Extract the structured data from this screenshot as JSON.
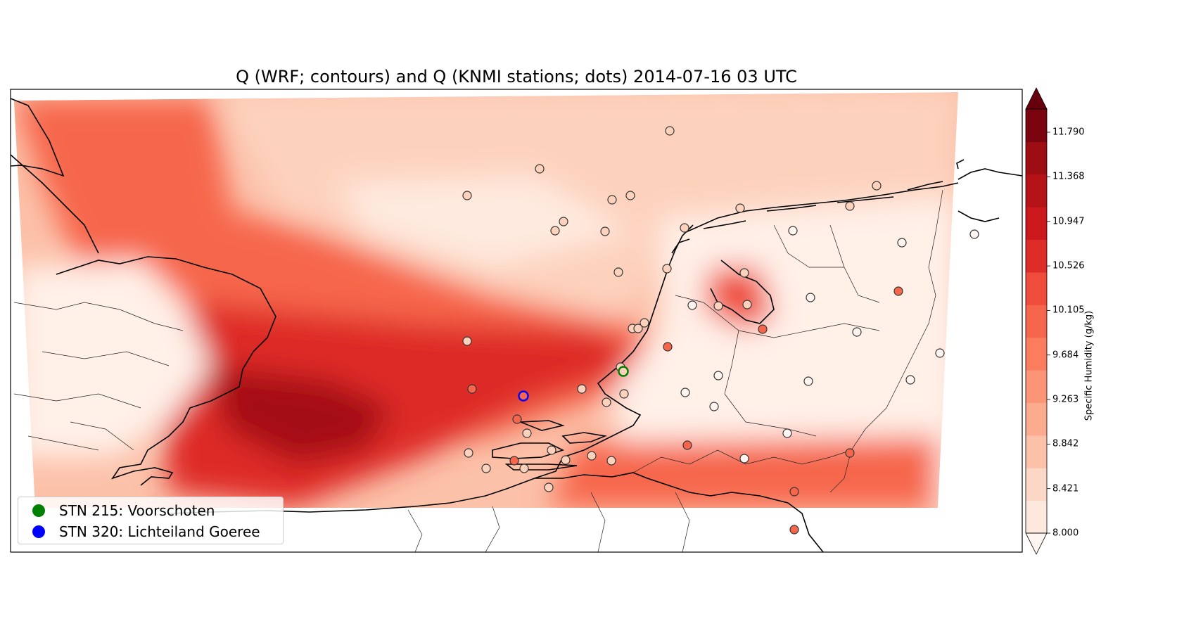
{
  "title": "Q (WRF; contours) and Q (KNMI stations; dots) 2014-07-16 03 UTC",
  "legend": {
    "items": [
      {
        "label": "STN 215: Voorschoten",
        "color": "#008000"
      },
      {
        "label": "STN 320: Lichteiland Goeree",
        "color": "#0000ff"
      }
    ]
  },
  "colorbar": {
    "label": "Specific Humidity (g/kg)",
    "ticks": [
      "8.000",
      "8.421",
      "8.842",
      "9.263",
      "9.684",
      "10.105",
      "10.526",
      "10.947",
      "11.368",
      "11.790"
    ],
    "min": 8.0,
    "max": 12.0,
    "extend": "both",
    "colors": [
      "#fff5f0",
      "#fee8dd",
      "#fdd7c5",
      "#fcc1a9",
      "#fcab8f",
      "#fc9575",
      "#fb7d5d",
      "#f6664c",
      "#ef4c3b",
      "#de2c26",
      "#cb181d",
      "#b61319",
      "#9d0d14",
      "#7a0510",
      "#67000d"
    ]
  },
  "map_colors": {
    "background": "#fde0d2",
    "land_light": "#fff2ec",
    "sea_mid": "#f6664c",
    "sea_dark": "#cb181d",
    "sea_darkest": "#a50f15",
    "north_sea_pale": "#fdd2bd"
  },
  "markers": {
    "station_fill_default": "#fff5f0",
    "station_fill_highlight": "#f6664c",
    "station_215_color": "#008000",
    "station_320_color": "#0000ff"
  }
}
